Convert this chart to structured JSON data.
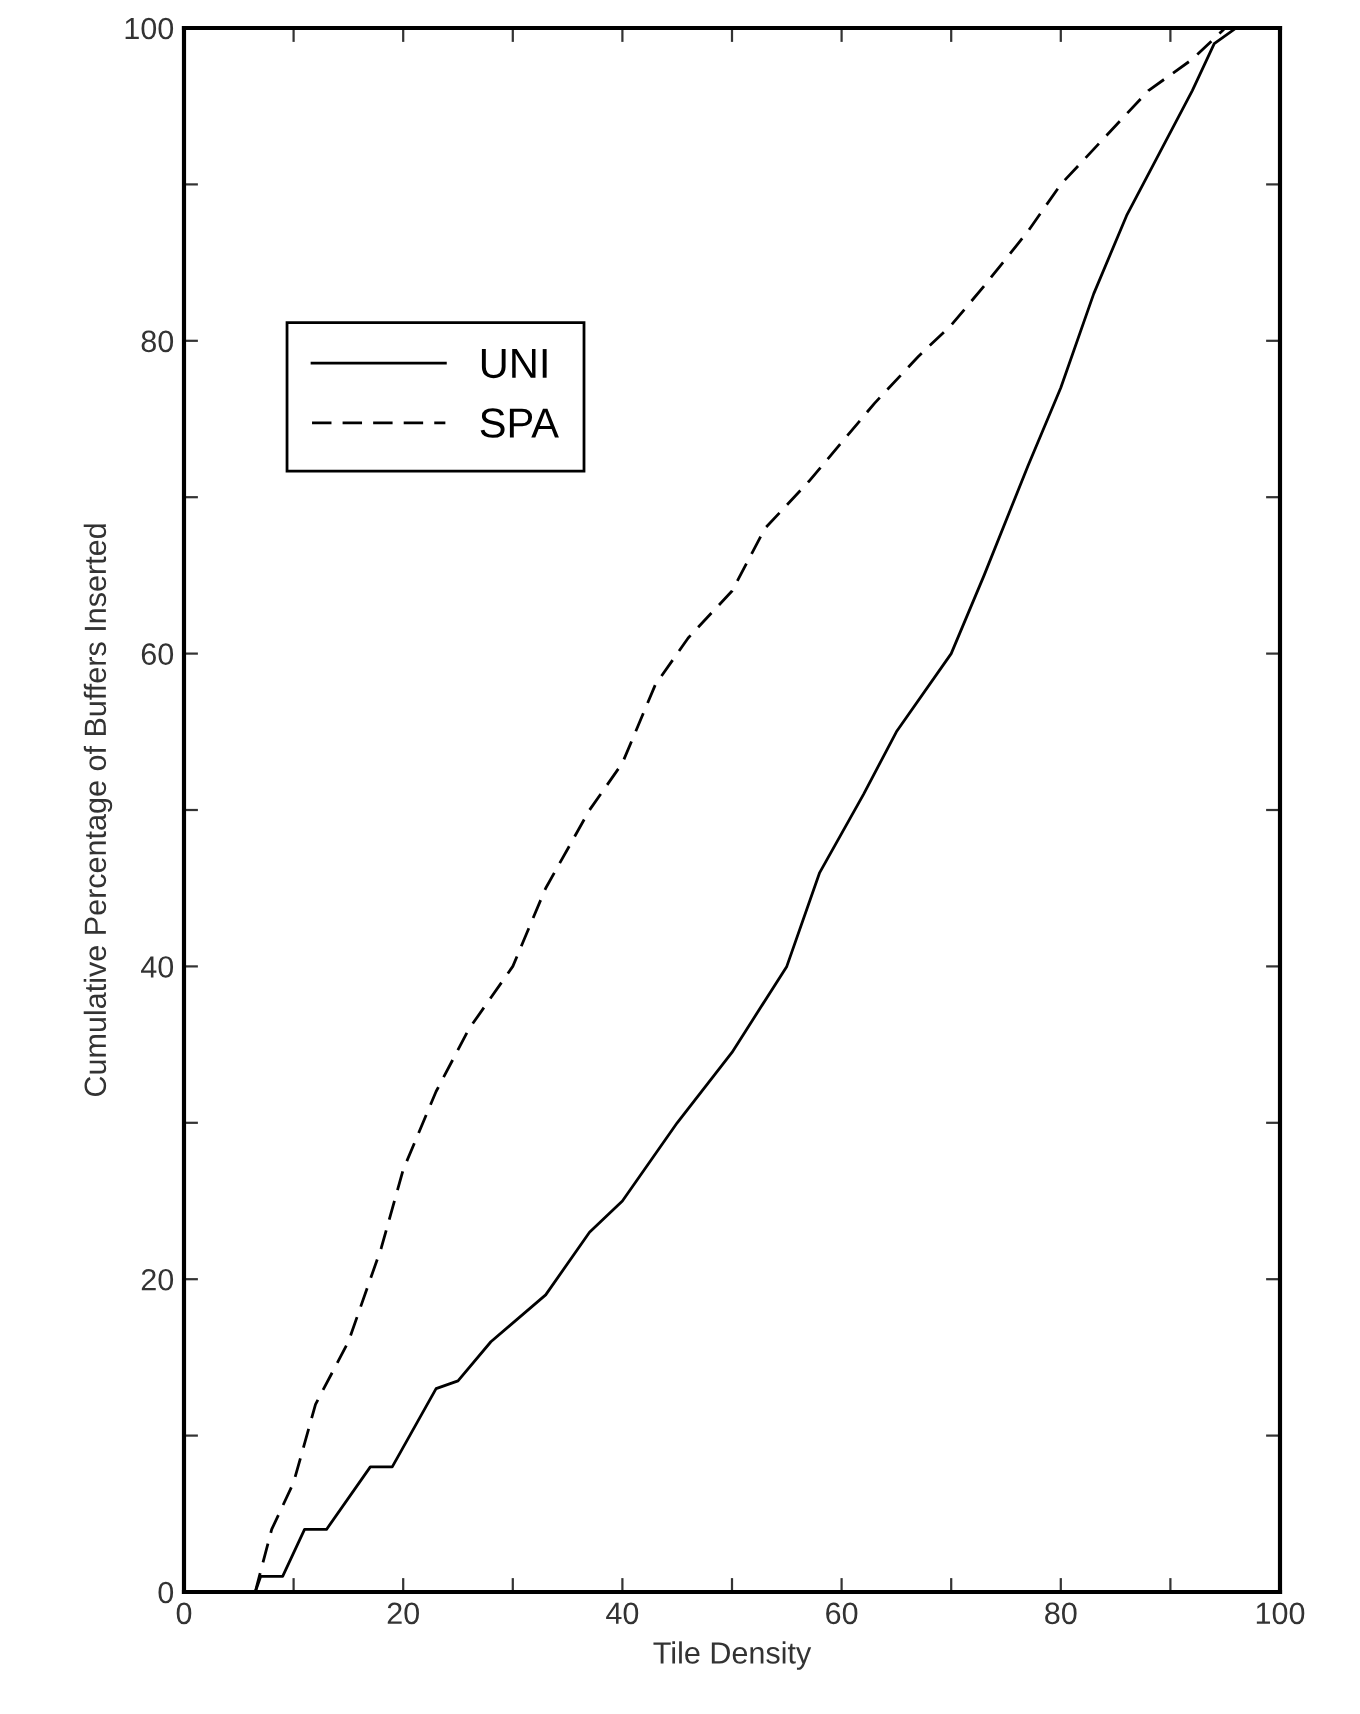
{
  "chart_data": {
    "type": "line",
    "xlabel": "Tile Density",
    "ylabel": "Cumulative Percentage of Buffers Inserted",
    "xlim": [
      0,
      100
    ],
    "ylim": [
      0,
      100
    ],
    "xticks": [
      0,
      {
        "value": 10,
        "label": null
      },
      20,
      {
        "value": 30,
        "label": null
      },
      40,
      {
        "value": 50,
        "label": null
      },
      60,
      {
        "value": 70,
        "label": null
      },
      80,
      {
        "value": 90,
        "label": null
      },
      100
    ],
    "yticks": [
      0,
      {
        "value": 10,
        "label": null
      },
      20,
      {
        "value": 30,
        "label": null
      },
      40,
      {
        "value": 50,
        "label": null
      },
      60,
      {
        "value": 70,
        "label": null
      },
      80,
      {
        "value": 90,
        "label": null
      },
      100
    ],
    "grid": false,
    "legend": "upper left",
    "marker": "none",
    "series": [
      {
        "name": "UNI",
        "color": "#000000",
        "line_style": "solid",
        "x": [
          6.5,
          7,
          9,
          11,
          13,
          17,
          19,
          23,
          25,
          28,
          33,
          37,
          40,
          45,
          50,
          55,
          58,
          62,
          65,
          70,
          73,
          77,
          80,
          83,
          86,
          89,
          92,
          94,
          96
        ],
        "values": [
          0,
          1,
          1,
          4,
          4,
          8,
          8,
          13,
          13.5,
          16,
          19,
          23,
          25,
          30,
          34.5,
          40,
          46,
          51,
          55,
          60,
          65,
          72,
          77,
          83,
          88,
          92,
          96,
          99,
          100
        ]
      },
      {
        "name": "SPA",
        "color": "#000000",
        "line_style": "dashed",
        "x": [
          6.5,
          8,
          10,
          12,
          15,
          18,
          20,
          23,
          26,
          30,
          33,
          37,
          40,
          43,
          46,
          50,
          53,
          57,
          60,
          63,
          67,
          70,
          73,
          77,
          80,
          84,
          88,
          92,
          95
        ],
        "values": [
          0,
          4,
          7,
          12,
          16,
          22,
          27,
          32,
          36,
          40,
          45,
          50,
          53,
          58,
          61,
          64,
          68,
          71,
          73.5,
          76,
          79,
          81,
          83.5,
          87,
          90,
          93,
          96,
          98,
          100
        ]
      }
    ]
  }
}
